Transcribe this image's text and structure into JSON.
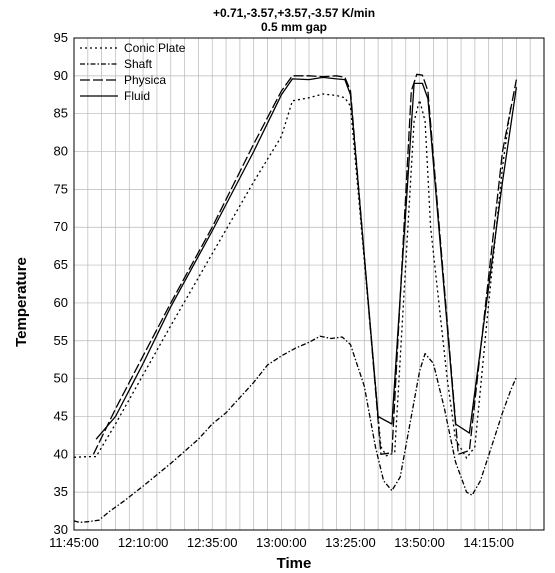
{
  "chart_data": {
    "type": "line",
    "title": "+0.71,-3.57,+3.57,-3.57 K/min",
    "subtitle": "0.5 mm gap",
    "xlabel": "Time",
    "ylabel": "Temperature",
    "x_ticks": [
      "11:45:00",
      "12:10:00",
      "12:35:00",
      "13:00:00",
      "13:25:00",
      "13:50:00",
      "14:15:00"
    ],
    "xlim": [
      "11:45:00",
      "14:35:00"
    ],
    "ylim": [
      30,
      95
    ],
    "y_ticks": [
      30,
      35,
      40,
      45,
      50,
      55,
      60,
      65,
      70,
      75,
      80,
      85,
      90,
      95
    ],
    "grid": true,
    "legend_position": "top-left",
    "series": [
      {
        "name": "Conic Plate",
        "dash": "2,3",
        "points": [
          [
            "11:45:00",
            39.6
          ],
          [
            "11:50:00",
            39.7
          ],
          [
            "11:53:00",
            39.7
          ],
          [
            "12:00:00",
            44.0
          ],
          [
            "12:10:00",
            50.5
          ],
          [
            "12:20:00",
            57.0
          ],
          [
            "12:35:00",
            66.5
          ],
          [
            "12:50:00",
            76.0
          ],
          [
            "13:00:00",
            82.0
          ],
          [
            "13:04:00",
            86.7
          ],
          [
            "13:10:00",
            87.1
          ],
          [
            "13:15:00",
            87.6
          ],
          [
            "13:20:00",
            87.4
          ],
          [
            "13:23:00",
            87.1
          ],
          [
            "13:25:00",
            86.0
          ],
          [
            "13:36:00",
            41.0
          ],
          [
            "13:38:00",
            39.8
          ],
          [
            "13:41:00",
            40.2
          ],
          [
            "13:48:00",
            84.0
          ],
          [
            "13:50:00",
            86.8
          ],
          [
            "13:52:00",
            84.0
          ],
          [
            "13:54:00",
            70.0
          ],
          [
            "14:00:00",
            50.0
          ],
          [
            "14:03:00",
            42.0
          ],
          [
            "14:07:00",
            39.5
          ],
          [
            "14:10:00",
            41.0
          ],
          [
            "14:15:00",
            60.0
          ],
          [
            "14:20:00",
            78.0
          ],
          [
            "14:23:00",
            86.0
          ]
        ]
      },
      {
        "name": "Shaft",
        "dash": "5,2,1.5,2",
        "points": [
          [
            "11:45:00",
            31.2
          ],
          [
            "11:47:00",
            31.0
          ],
          [
            "11:50:00",
            31.1
          ],
          [
            "11:54:00",
            31.3
          ],
          [
            "11:58:00",
            32.5
          ],
          [
            "12:03:00",
            33.8
          ],
          [
            "12:10:00",
            35.8
          ],
          [
            "12:20:00",
            38.8
          ],
          [
            "12:30:00",
            42.0
          ],
          [
            "12:35:00",
            44.0
          ],
          [
            "12:40:00",
            45.5
          ],
          [
            "12:50:00",
            49.5
          ],
          [
            "12:55:00",
            51.8
          ],
          [
            "13:00:00",
            53.0
          ],
          [
            "13:05:00",
            54.0
          ],
          [
            "13:10:00",
            54.8
          ],
          [
            "13:14:00",
            55.6
          ],
          [
            "13:18:00",
            55.3
          ],
          [
            "13:22:00",
            55.5
          ],
          [
            "13:25:00",
            54.5
          ],
          [
            "13:30:00",
            49.0
          ],
          [
            "13:34:00",
            41.0
          ],
          [
            "13:37:00",
            36.5
          ],
          [
            "13:40:00",
            35.2
          ],
          [
            "13:43:00",
            37.0
          ],
          [
            "13:47:00",
            45.0
          ],
          [
            "13:50:00",
            51.0
          ],
          [
            "13:52:00",
            53.3
          ],
          [
            "13:55:00",
            52.0
          ],
          [
            "13:59:00",
            46.0
          ],
          [
            "14:03:00",
            39.0
          ],
          [
            "14:07:00",
            35.0
          ],
          [
            "14:09:00",
            34.6
          ],
          [
            "14:12:00",
            36.5
          ],
          [
            "14:16:00",
            41.0
          ],
          [
            "14:20:00",
            45.5
          ],
          [
            "14:23:00",
            48.5
          ],
          [
            "14:25:00",
            50.2
          ]
        ]
      },
      {
        "name": "Physica",
        "dash": "10,3",
        "points": [
          [
            "11:52:00",
            40.0
          ],
          [
            "12:00:00",
            46.0
          ],
          [
            "12:10:00",
            53.0
          ],
          [
            "12:20:00",
            60.0
          ],
          [
            "12:35:00",
            70.0
          ],
          [
            "12:50:00",
            81.0
          ],
          [
            "13:00:00",
            88.0
          ],
          [
            "13:04:00",
            90.0
          ],
          [
            "13:10:00",
            90.0
          ],
          [
            "13:15:00",
            89.9
          ],
          [
            "13:20:00",
            90.0
          ],
          [
            "13:23:00",
            89.8
          ],
          [
            "13:25:00",
            88.0
          ],
          [
            "13:36:00",
            40.0
          ],
          [
            "13:40:00",
            40.2
          ],
          [
            "13:47:00",
            88.0
          ],
          [
            "13:49:00",
            90.2
          ],
          [
            "13:51:00",
            90.1
          ],
          [
            "13:53:00",
            88.0
          ],
          [
            "14:04:00",
            40.0
          ],
          [
            "14:08:00",
            40.5
          ],
          [
            "14:20:00",
            80.0
          ],
          [
            "14:25:00",
            89.5
          ]
        ]
      },
      {
        "name": "Fluid",
        "dash": "",
        "points": [
          [
            "11:53:00",
            42.0
          ],
          [
            "12:00:00",
            45.0
          ],
          [
            "12:10:00",
            52.0
          ],
          [
            "12:20:00",
            59.5
          ],
          [
            "12:35:00",
            69.5
          ],
          [
            "12:50:00",
            80.0
          ],
          [
            "13:00:00",
            87.5
          ],
          [
            "13:04:00",
            89.6
          ],
          [
            "13:10:00",
            89.5
          ],
          [
            "13:15:00",
            89.8
          ],
          [
            "13:20:00",
            89.6
          ],
          [
            "13:23:00",
            89.5
          ],
          [
            "13:25:00",
            87.5
          ],
          [
            "13:35:00",
            45.0
          ],
          [
            "13:40:00",
            44.0
          ],
          [
            "13:48:00",
            89.0
          ],
          [
            "13:51:00",
            89.0
          ],
          [
            "13:53:00",
            87.0
          ],
          [
            "14:03:00",
            44.0
          ],
          [
            "14:08:00",
            42.8
          ],
          [
            "14:20:00",
            76.0
          ],
          [
            "14:25:00",
            88.5
          ]
        ]
      }
    ]
  }
}
